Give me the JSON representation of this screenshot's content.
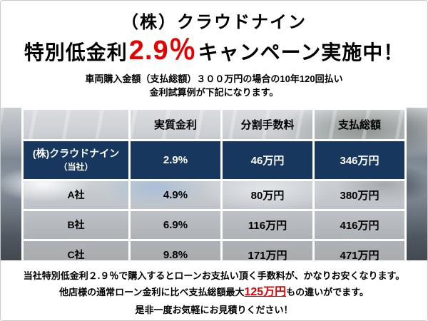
{
  "header": {
    "company": "（株）クラウドナイン",
    "campaign": {
      "prefix": "特別低金利",
      "rate": "2.9％",
      "suffix": "キャンペーン実施中！"
    },
    "description_line1": "車両購入金額（支払総額）３００万円の場合の10年120回払い",
    "description_line2": "金利試算例が下記になります。"
  },
  "table": {
    "headers": [
      "",
      "実質金利",
      "分割手数料",
      "支払総額"
    ],
    "rows": [
      {
        "name": "(株)クラウドナイン",
        "name_sub": "（当社）",
        "rate": "2.9%",
        "fee": "46万円",
        "total": "346万円"
      },
      {
        "name": "A社",
        "name_sub": "",
        "rate": "4.9%",
        "fee": "80万円",
        "total": "380万円"
      },
      {
        "name": "B社",
        "name_sub": "",
        "rate": "6.9%",
        "fee": "116万円",
        "total": "416万円"
      },
      {
        "name": "C社",
        "name_sub": "",
        "rate": "9.8%",
        "fee": "171万円",
        "total": "471万円"
      }
    ]
  },
  "footer": {
    "line1": "当社特別低金利２.９％で購入するとローンお支払い頂く手数料が、かなりお安くなります。",
    "line2_prefix": "他店様の通常ローン金利に比べ支払総額最大",
    "line2_highlight": "125万円",
    "line2_suffix": "もの違いがでます。",
    "line3": "是非一度お気軽にお見積りください！"
  },
  "colors": {
    "highlight_red": "#e60000",
    "company_row_bg": "#17375e"
  }
}
